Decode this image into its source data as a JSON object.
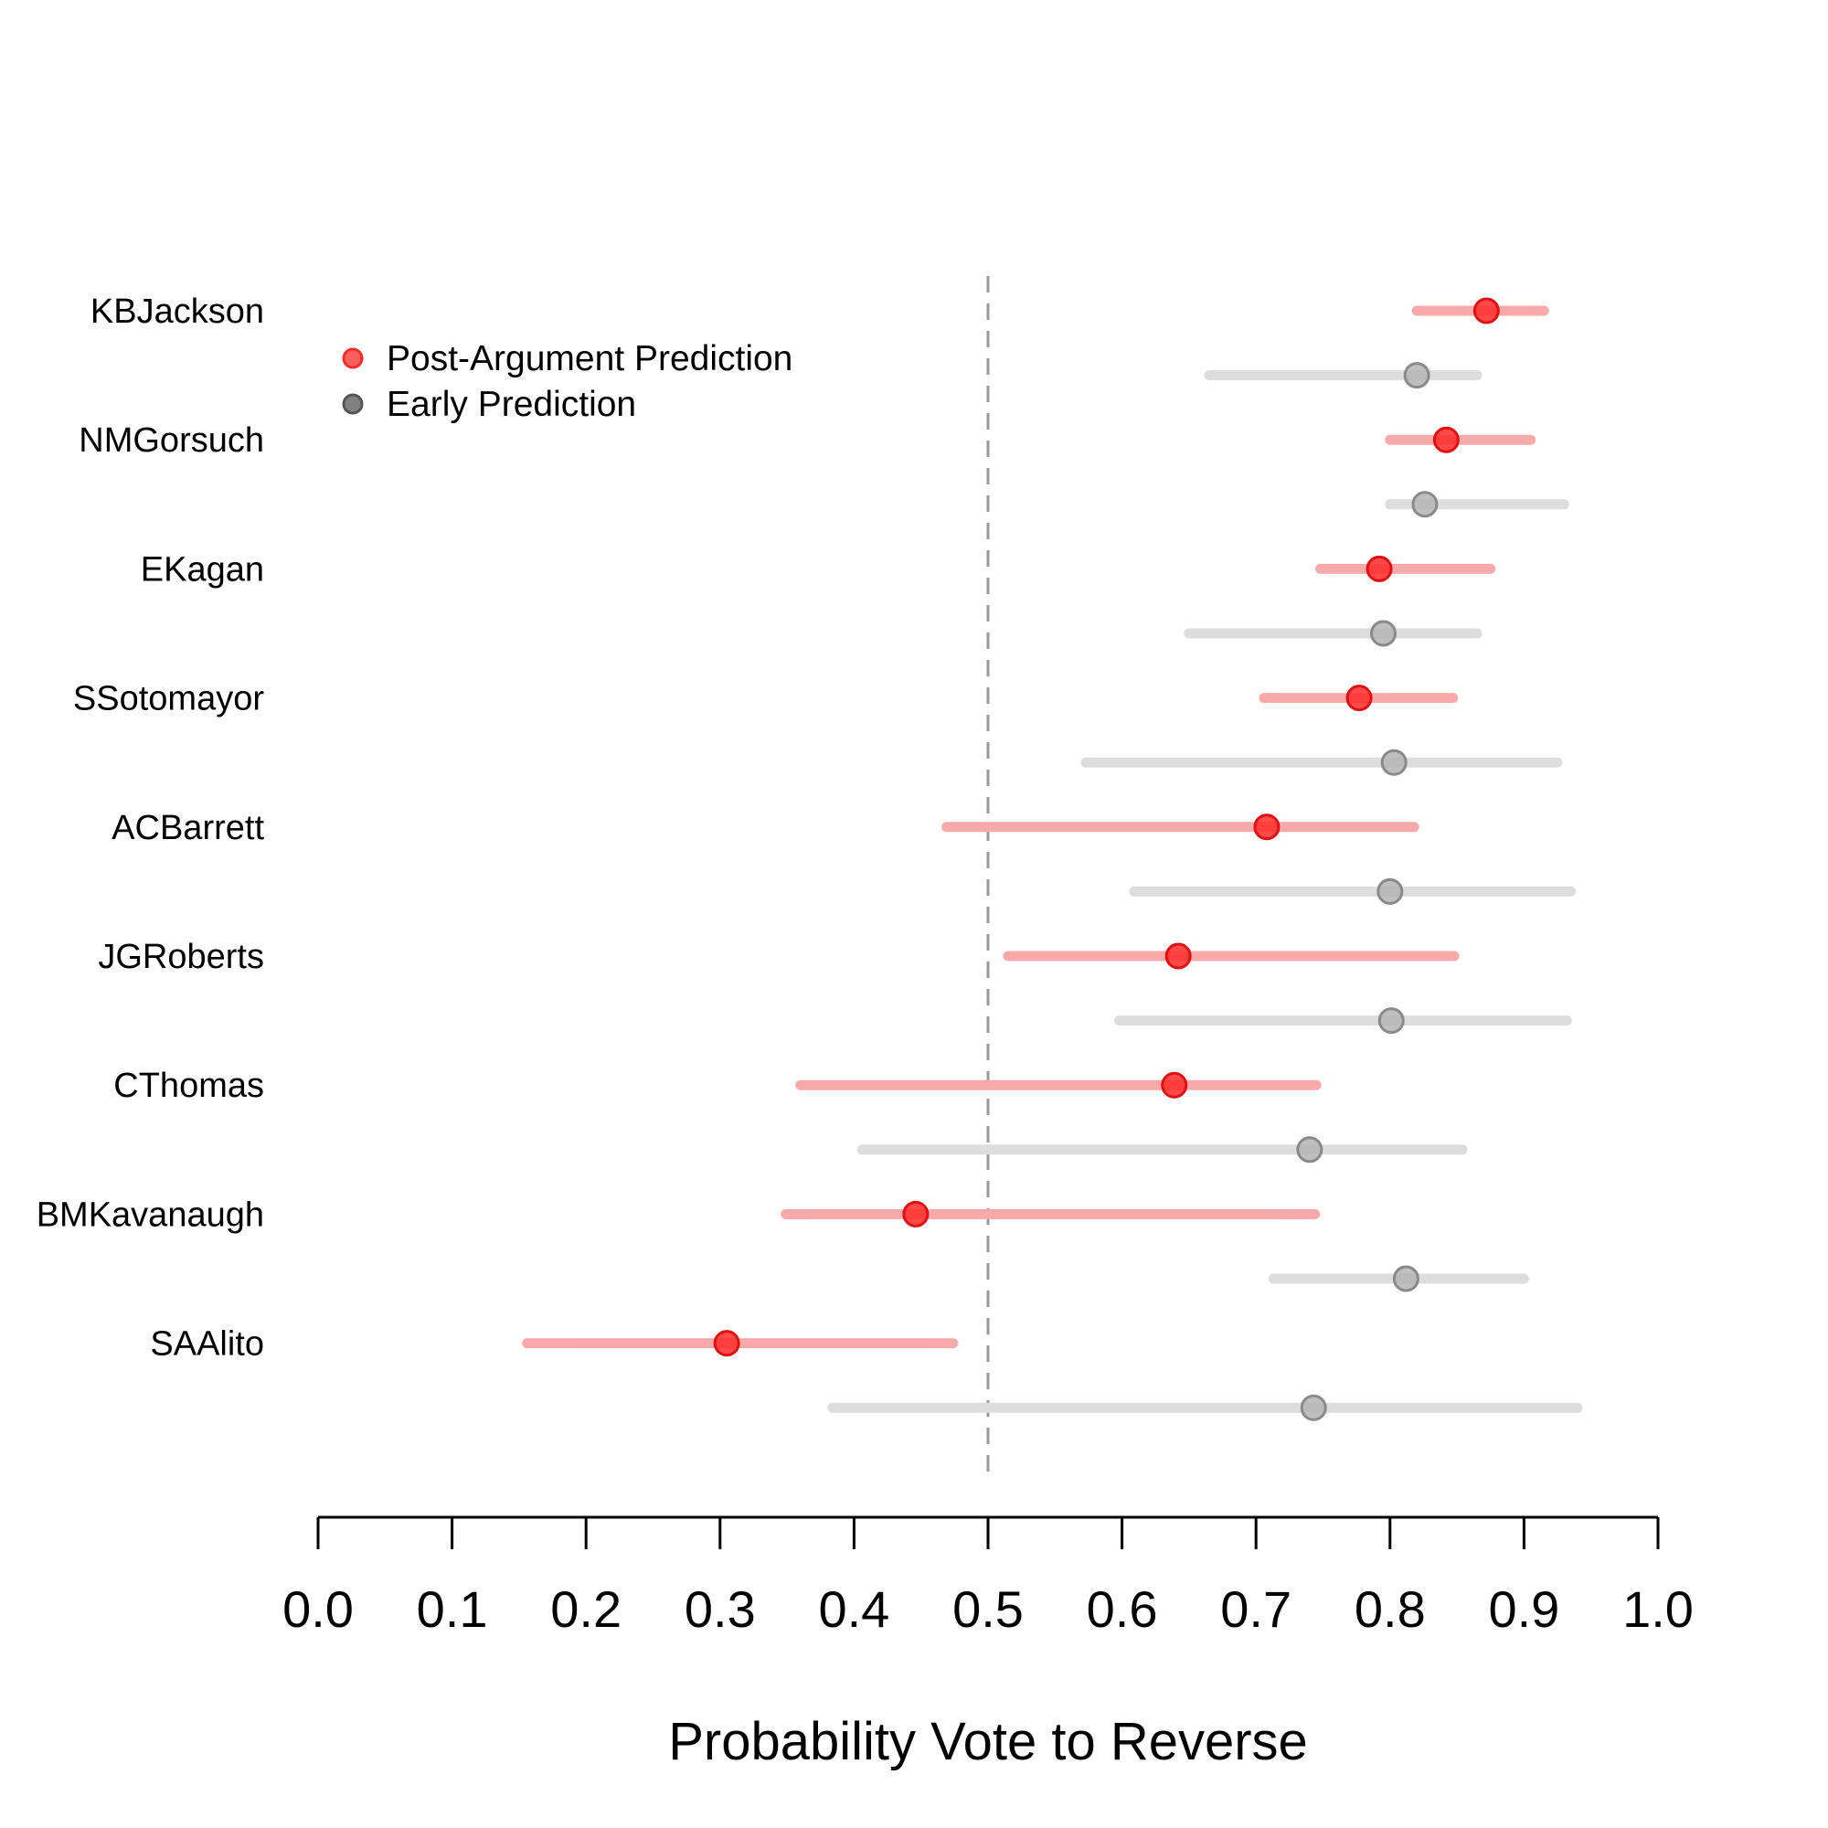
{
  "chart_data": {
    "type": "scatter",
    "subtype": "dot-and-interval",
    "title": "",
    "xlabel": "Probability Vote to Reverse",
    "ylabel": "",
    "xlim": [
      0.0,
      1.0
    ],
    "xticks": [
      "0.0",
      "0.1",
      "0.2",
      "0.3",
      "0.4",
      "0.5",
      "0.6",
      "0.7",
      "0.8",
      "0.9",
      "1.0"
    ],
    "reference_line": 0.5,
    "legend": {
      "placement": "top-left",
      "entries": [
        {
          "label": "Post-Argument Prediction",
          "color": "#ff2a2a"
        },
        {
          "label": "Early Prediction",
          "color": "#555555"
        }
      ]
    },
    "colors": {
      "post_point": "#ff2a2a",
      "post_interval": "#f8aaaa",
      "early_point": "#b4b4b4",
      "early_interval": "#dddddd",
      "reference_line": "#999999",
      "axis": "#000000"
    },
    "justices": [
      {
        "name": "KBJackson",
        "post": {
          "value": 0.872,
          "low": 0.82,
          "high": 0.915
        },
        "early": {
          "value": 0.82,
          "low": 0.665,
          "high": 0.865
        }
      },
      {
        "name": "NMGorsuch",
        "post": {
          "value": 0.842,
          "low": 0.8,
          "high": 0.905
        },
        "early": {
          "value": 0.826,
          "low": 0.8,
          "high": 0.93
        }
      },
      {
        "name": "EKagan",
        "post": {
          "value": 0.792,
          "low": 0.748,
          "high": 0.875
        },
        "early": {
          "value": 0.795,
          "low": 0.65,
          "high": 0.865
        }
      },
      {
        "name": "SSotomayor",
        "post": {
          "value": 0.777,
          "low": 0.706,
          "high": 0.847
        },
        "early": {
          "value": 0.803,
          "low": 0.573,
          "high": 0.925
        }
      },
      {
        "name": "ACBarrett",
        "post": {
          "value": 0.708,
          "low": 0.469,
          "high": 0.818
        },
        "early": {
          "value": 0.8,
          "low": 0.609,
          "high": 0.935
        }
      },
      {
        "name": "JGRoberts",
        "post": {
          "value": 0.642,
          "low": 0.515,
          "high": 0.848
        },
        "early": {
          "value": 0.801,
          "low": 0.598,
          "high": 0.932
        }
      },
      {
        "name": "CThomas",
        "post": {
          "value": 0.639,
          "low": 0.36,
          "high": 0.745
        },
        "early": {
          "value": 0.74,
          "low": 0.406,
          "high": 0.854
        }
      },
      {
        "name": "BMKavanaugh",
        "post": {
          "value": 0.446,
          "low": 0.349,
          "high": 0.744
        },
        "early": {
          "value": 0.812,
          "low": 0.713,
          "high": 0.9
        }
      },
      {
        "name": "SAAlito",
        "post": {
          "value": 0.305,
          "low": 0.156,
          "high": 0.474
        },
        "early": {
          "value": 0.743,
          "low": 0.384,
          "high": 0.94
        }
      }
    ]
  }
}
